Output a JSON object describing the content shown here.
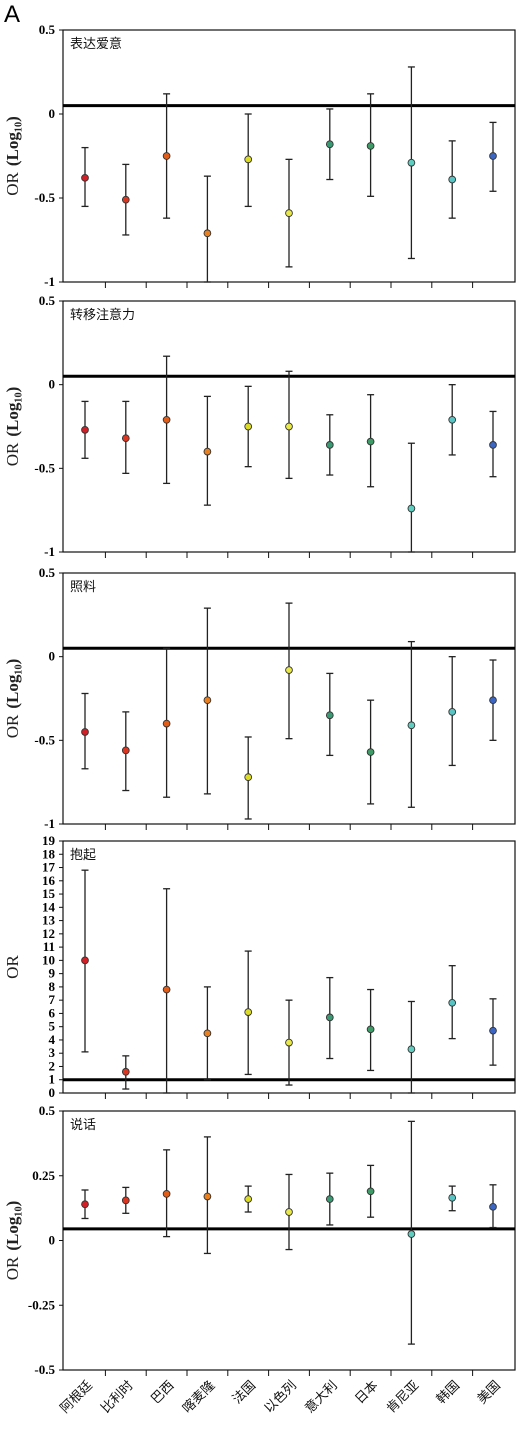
{
  "panel_label": "A",
  "chart_data": {
    "categories": [
      "阿根廷",
      "比利时",
      "巴西",
      "喀麦隆",
      "法国",
      "以色列",
      "意大利",
      "日本",
      "肯尼亚",
      "韩国",
      "美国"
    ],
    "colors": [
      "#d41f26",
      "#dd3620",
      "#e25d18",
      "#ea7f1e",
      "#dcdc26",
      "#e8e84a",
      "#3a9a74",
      "#3f9b67",
      "#5fcdc0",
      "#58c4c4",
      "#3c66c4"
    ],
    "panels": [
      {
        "type": "scatter",
        "title": "表达爱意",
        "ylabel_main": "OR",
        "ylabel_sub": "(Log₁₀)",
        "ylim": [
          -1,
          0.5
        ],
        "yticks": [
          0.5,
          0,
          -0.5,
          -1
        ],
        "ytick_labels": [
          "0.5",
          "0",
          "-0.5",
          "-1"
        ],
        "reference_line": 0.05,
        "values": [
          -0.38,
          -0.51,
          -0.25,
          -0.71,
          -0.27,
          -0.59,
          -0.18,
          -0.19,
          -0.29,
          -0.39,
          -0.25
        ],
        "lower": [
          -0.55,
          -0.72,
          -0.62,
          -1.0,
          -0.55,
          -0.91,
          -0.39,
          -0.49,
          -0.86,
          -0.62,
          -0.46
        ],
        "upper": [
          -0.2,
          -0.3,
          0.12,
          -0.37,
          0.0,
          -0.27,
          0.03,
          0.12,
          0.28,
          -0.16,
          -0.05
        ]
      },
      {
        "type": "scatter",
        "title": "转移注意力",
        "ylabel_main": "OR",
        "ylabel_sub": "(Log₁₀)",
        "ylim": [
          -1,
          0.5
        ],
        "yticks": [
          0.5,
          0,
          -0.5,
          -1
        ],
        "ytick_labels": [
          "0.5",
          "0",
          "-0.5",
          "-1"
        ],
        "reference_line": 0.05,
        "values": [
          -0.27,
          -0.32,
          -0.21,
          -0.4,
          -0.25,
          -0.25,
          -0.36,
          -0.34,
          -0.74,
          -0.21,
          -0.36
        ],
        "lower": [
          -0.44,
          -0.53,
          -0.59,
          -0.72,
          -0.49,
          -0.56,
          -0.54,
          -0.61,
          -1.0,
          -0.42,
          -0.55
        ],
        "upper": [
          -0.1,
          -0.1,
          0.17,
          -0.07,
          -0.01,
          0.08,
          -0.18,
          -0.06,
          -0.35,
          0.0,
          -0.16
        ]
      },
      {
        "type": "scatter",
        "title": "照料",
        "ylabel_main": "OR",
        "ylabel_sub": "(Log₁₀)",
        "ylim": [
          -1,
          0.5
        ],
        "yticks": [
          0.5,
          0,
          -0.5,
          -1
        ],
        "ytick_labels": [
          "0.5",
          "0",
          "-0.5",
          "-1"
        ],
        "reference_line": 0.05,
        "values": [
          -0.45,
          -0.56,
          -0.4,
          -0.26,
          -0.72,
          -0.08,
          -0.35,
          -0.57,
          -0.41,
          -0.33,
          -0.26
        ],
        "lower": [
          -0.67,
          -0.8,
          -0.84,
          -0.82,
          -0.97,
          -0.49,
          -0.59,
          -0.88,
          -0.9,
          -0.65,
          -0.5
        ],
        "upper": [
          -0.22,
          -0.33,
          0.05,
          0.29,
          -0.48,
          0.32,
          -0.1,
          -0.26,
          0.09,
          0.0,
          -0.02
        ]
      },
      {
        "type": "scatter",
        "title": "抱起",
        "ylabel_main": "OR",
        "ylabel_sub": "",
        "ylim": [
          0,
          19
        ],
        "yticks": [
          19,
          18,
          17,
          16,
          15,
          14,
          13,
          12,
          11,
          10,
          9,
          8,
          7,
          6,
          5,
          4,
          3,
          2,
          1,
          0
        ],
        "ytick_labels": [
          "19",
          "18",
          "17",
          "16",
          "15",
          "14",
          "13",
          "12",
          "11",
          "10",
          "9",
          "8",
          "7",
          "6",
          "5",
          "4",
          "3",
          "2",
          "1",
          "0"
        ],
        "reference_line": 1,
        "values": [
          10.0,
          1.6,
          7.8,
          4.5,
          6.1,
          3.8,
          5.7,
          4.8,
          3.3,
          6.8,
          4.7
        ],
        "lower": [
          3.1,
          0.3,
          0.0,
          1.0,
          1.4,
          0.6,
          2.6,
          1.7,
          0.0,
          4.1,
          2.1
        ],
        "upper": [
          16.8,
          2.8,
          15.4,
          8.0,
          10.7,
          7.0,
          8.7,
          7.8,
          6.9,
          9.6,
          7.1
        ]
      },
      {
        "type": "scatter",
        "title": "说话",
        "ylabel_main": "OR",
        "ylabel_sub": "(Log₁₀)",
        "ylim": [
          -0.5,
          0.5
        ],
        "yticks": [
          0.5,
          0.25,
          0,
          -0.25,
          -0.5
        ],
        "ytick_labels": [
          "0.5",
          "0.25",
          "0",
          "-0.25",
          "-0.5"
        ],
        "reference_line": 0.045,
        "values": [
          0.14,
          0.155,
          0.18,
          0.17,
          0.16,
          0.11,
          0.16,
          0.19,
          0.025,
          0.165,
          0.13
        ],
        "lower": [
          0.085,
          0.105,
          0.015,
          -0.05,
          0.11,
          -0.035,
          0.06,
          0.09,
          -0.4,
          0.115,
          0.05
        ],
        "upper": [
          0.195,
          0.205,
          0.35,
          0.4,
          0.21,
          0.255,
          0.26,
          0.29,
          0.46,
          0.21,
          0.215
        ]
      }
    ]
  }
}
